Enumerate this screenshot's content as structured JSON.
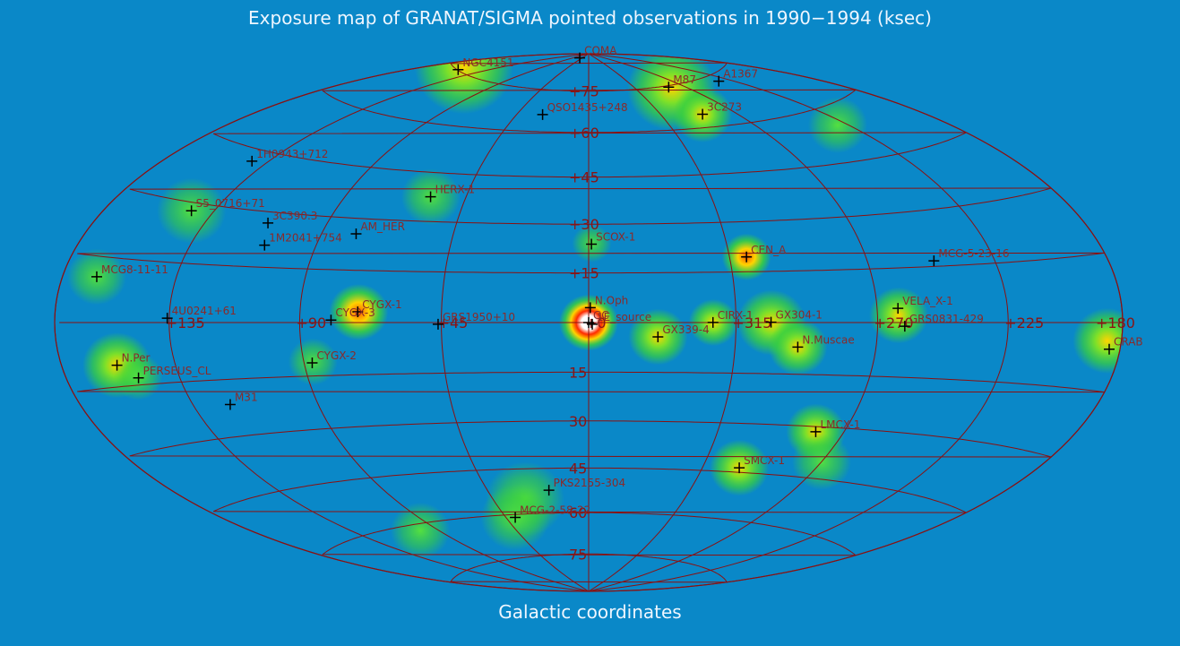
{
  "title": "Exposure map of GRANAT/SIGMA pointed observations in 1990−1994 (ksec)",
  "subtitle": "Galactic coordinates",
  "colors": {
    "background": "#0a88c8",
    "grid": "#8a1010",
    "marker": "#000000",
    "label": "#8a2a2a",
    "exposure_low": "#3ad23a",
    "exposure_mid": "#ffd400",
    "exposure_high": "#ff2a00",
    "exposure_peak": "#ffffff"
  },
  "grid": {
    "longitude_labels": [
      "135",
      "90",
      "45",
      "0",
      "315",
      "270",
      "225",
      "180"
    ],
    "latitude_labels": [
      "75",
      "60",
      "45",
      "30",
      "15",
      "0",
      "15",
      "30",
      "45",
      "60",
      "75"
    ]
  },
  "sources": [
    {
      "label": "NGC4151",
      "l": 155.1,
      "b": 75.1
    },
    {
      "label": "COMA",
      "l": 58,
      "b": 88
    },
    {
      "label": "M87",
      "l": 283.8,
      "b": 74.5
    },
    {
      "label": "A1367",
      "l": 234.8,
      "b": 73
    },
    {
      "label": "QSO1435+248",
      "l": 29,
      "b": 66
    },
    {
      "label": "3C273",
      "l": 289.9,
      "b": 64.4
    },
    {
      "label": "1H0943+712",
      "l": 142,
      "b": 42
    },
    {
      "label": "S5_0716+71",
      "l": 143.9,
      "b": 28
    },
    {
      "label": "HERX-1",
      "l": 58.1,
      "b": 37.5
    },
    {
      "label": "3C390.3",
      "l": 111.4,
      "b": 27
    },
    {
      "label": "AM_HER",
      "l": 78,
      "b": 25.5
    },
    {
      "label": "1M2041+754",
      "l": 108,
      "b": 21
    },
    {
      "label": "SCOX-1",
      "l": 359.1,
      "b": 23.8
    },
    {
      "label": "CEN_A",
      "l": 309.5,
      "b": 19.4
    },
    {
      "label": "MCG-5-23-16",
      "l": 247,
      "b": 16.5
    },
    {
      "label": "MCG8-11-11",
      "l": 165.7,
      "b": 10.4
    },
    {
      "label": "N.Oph",
      "l": 359.5,
      "b": 4.5
    },
    {
      "label": "VELA_X-1",
      "l": 263.1,
      "b": 3.9
    },
    {
      "label": "4U0241+61",
      "l": 135.7,
      "b": 1.1
    },
    {
      "label": "CYGX-1",
      "l": 71.3,
      "b": 3.1
    },
    {
      "label": "GRS1950+10",
      "l": 46,
      "b": -0.5
    },
    {
      "label": "GC",
      "l": 0,
      "b": 0
    },
    {
      "label": "1E_source",
      "l": 358.9,
      "b": -0.5
    },
    {
      "label": "CIRX-1",
      "l": 322.1,
      "b": 0.04
    },
    {
      "label": "GX304-1",
      "l": 304.1,
      "b": 0.1
    },
    {
      "label": "GRS0831-429",
      "l": 261,
      "b": -1
    },
    {
      "label": "CYGX-3",
      "l": 79.8,
      "b": 0.7
    },
    {
      "label": "GX339-4",
      "l": 338.9,
      "b": -4.3
    },
    {
      "label": "N.Muscae",
      "l": 295.3,
      "b": -7.1
    },
    {
      "label": "CRAB",
      "l": 184.6,
      "b": -5.8
    },
    {
      "label": "N.Per",
      "l": 157.2,
      "b": -10
    },
    {
      "label": "PERSEUS_CL",
      "l": 150.6,
      "b": -13.3
    },
    {
      "label": "CYGX-2",
      "l": 87.3,
      "b": -11.3
    },
    {
      "label": "M31",
      "l": 121.2,
      "b": -21.6
    },
    {
      "label": "LMCX-1",
      "l": 280.2,
      "b": -31.5
    },
    {
      "label": "SMCX-1",
      "l": 300.4,
      "b": -43.6
    },
    {
      "label": "PKS2155-304",
      "l": 17.7,
      "b": -52.2
    },
    {
      "label": "MCG-2-58-22",
      "l": 40,
      "b": -61
    }
  ],
  "exposure_blobs": [
    {
      "l": 0,
      "b": 0,
      "level": 1.0,
      "size": 6
    },
    {
      "l": 71,
      "b": 3,
      "level": 0.75,
      "size": 6
    },
    {
      "l": 309.5,
      "b": 19.4,
      "level": 0.65,
      "size": 5
    },
    {
      "l": 160,
      "b": 76,
      "level": 0.45,
      "size": 10
    },
    {
      "l": 283,
      "b": 74,
      "level": 0.45,
      "size": 9
    },
    {
      "l": 289.9,
      "b": 64.4,
      "level": 0.4,
      "size": 6
    },
    {
      "l": 338.9,
      "b": -4.3,
      "level": 0.45,
      "size": 6
    },
    {
      "l": 322,
      "b": 0,
      "level": 0.45,
      "size": 5
    },
    {
      "l": 304,
      "b": 0,
      "level": 0.5,
      "size": 7
    },
    {
      "l": 295.3,
      "b": -7,
      "level": 0.5,
      "size": 6
    },
    {
      "l": 263,
      "b": 2,
      "level": 0.5,
      "size": 6
    },
    {
      "l": 186,
      "b": -4,
      "level": 0.45,
      "size": 7
    },
    {
      "l": 157.2,
      "b": -10,
      "level": 0.5,
      "size": 7
    },
    {
      "l": 150.6,
      "b": -13,
      "level": 0.35,
      "size": 5
    },
    {
      "l": 165.7,
      "b": 10.4,
      "level": 0.35,
      "size": 6
    },
    {
      "l": 143.9,
      "b": 28,
      "level": 0.35,
      "size": 7
    },
    {
      "l": 58,
      "b": 37.5,
      "level": 0.35,
      "size": 6
    },
    {
      "l": 87,
      "b": -11,
      "level": 0.3,
      "size": 5
    },
    {
      "l": 280.2,
      "b": -31.5,
      "level": 0.45,
      "size": 6
    },
    {
      "l": 300.4,
      "b": -43.6,
      "level": 0.4,
      "size": 6
    },
    {
      "l": 30,
      "b": -55,
      "level": 0.3,
      "size": 8
    },
    {
      "l": 40,
      "b": -61,
      "level": 0.3,
      "size": 7
    },
    {
      "l": 270,
      "b": -40,
      "level": 0.3,
      "size": 6
    },
    {
      "l": 100,
      "b": -62,
      "level": 0.3,
      "size": 6
    },
    {
      "l": 230,
      "b": 55,
      "level": 0.25,
      "size": 6
    },
    {
      "l": 359,
      "b": 24,
      "level": 0.3,
      "size": 4
    }
  ]
}
